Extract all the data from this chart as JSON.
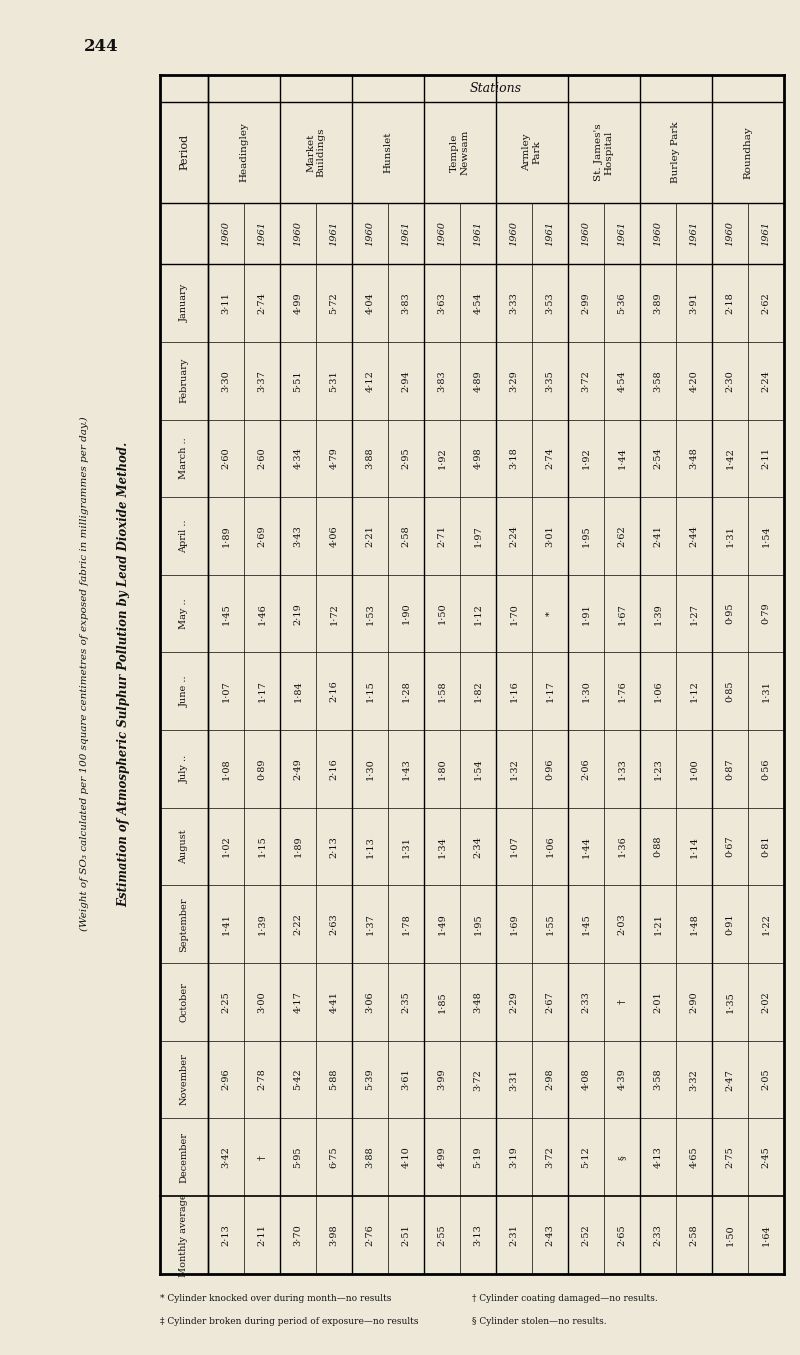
{
  "title_line1": "Estimation of Atmospheric Sulphur Pollution by Lead Dioxide Method.",
  "title_line2": "(Weight of SO₃ calculated per 100 square centimetres of exposed fabric in milligrammes per day.)",
  "page_number": "244",
  "stations_label": "Stations",
  "periods": [
    "January",
    "February",
    "March ..",
    "April ..",
    "May ..",
    "June ..",
    "July ..",
    "August",
    "September",
    "October",
    "November",
    "December",
    "Monthly average"
  ],
  "period_display": [
    "January",
    "February",
    "March\n..",
    "April\n..",
    "May\n..",
    "June\n..",
    "July\n..",
    "August",
    "September",
    "October",
    "November",
    "December",
    "Monthly\naverage"
  ],
  "column_names": [
    "Headingley",
    "Market\nBuildings",
    "Hunslet",
    "Temple\nNewsam",
    "Armley\nPark",
    "St. James's\nHospital",
    "Burley Park",
    "Roundhay"
  ],
  "data_1960": [
    [
      "3·11",
      "3·30",
      "2·60",
      "1·89",
      "1·45",
      "1·07",
      "1·08",
      "1·02",
      "1·41",
      "2·25",
      "2·96",
      "3·42",
      "2·13"
    ],
    [
      "4·99",
      "5·51",
      "4·34",
      "3·43",
      "2·19",
      "1·84",
      "2·49",
      "1·89",
      "2·22",
      "4·17",
      "5·42",
      "5·95",
      "3·70"
    ],
    [
      "4·04",
      "4·12",
      "3·88",
      "2·21",
      "1·53",
      "1·15",
      "1·30",
      "1·13",
      "1·37",
      "3·06",
      "5·39",
      "3·88",
      "2·76"
    ],
    [
      "3·63",
      "3·83",
      "1·92",
      "2·71",
      "1·50",
      "1·58",
      "1·80",
      "1·34",
      "1·49",
      "1·85",
      "3·99",
      "4·99",
      "2·55"
    ],
    [
      "3·33",
      "3·29",
      "3·18",
      "2·24",
      "1·70",
      "1·16",
      "1·32",
      "1·07",
      "1·69",
      "2·29",
      "3·31",
      "3·19",
      "2·31"
    ],
    [
      "2·99",
      "3·72",
      "1·92",
      "1·95",
      "1·91",
      "1·30",
      "2·06",
      "1·44",
      "1·45",
      "2·33",
      "4·08",
      "5·12",
      "2·52"
    ],
    [
      "3·89",
      "3·58",
      "2·54",
      "2·41",
      "1·39",
      "1·06",
      "1·23",
      "0·88",
      "1·21",
      "2·01",
      "3·58",
      "4·13",
      "2·33"
    ],
    [
      "2·18",
      "2·30",
      "1·42",
      "1·31",
      "0·95",
      "0·85",
      "0·87",
      "0·67",
      "0·91",
      "1·35",
      "2·47",
      "2·75",
      "1·50"
    ]
  ],
  "data_1961": [
    [
      "2·74",
      "3·37",
      "2·60",
      "2·69",
      "1·46",
      "1·17",
      "0·89",
      "1·15",
      "1·39",
      "3·00",
      "2·78",
      "†",
      "2·11"
    ],
    [
      "5·72",
      "5·31",
      "4·79",
      "4·06",
      "1·72",
      "2·16",
      "2·16",
      "2·13",
      "2·63",
      "4·41",
      "5·88",
      "6·75",
      "3·98"
    ],
    [
      "3·83",
      "2·94",
      "2·95",
      "2·58",
      "1·90",
      "1·28",
      "1·43",
      "1·31",
      "1·78",
      "2·35",
      "3·61",
      "4·10",
      "2·51"
    ],
    [
      "4·54",
      "4·89",
      "4·98",
      "1·97",
      "1·12",
      "1·82",
      "1·54",
      "2·34",
      "1·95",
      "3·48",
      "3·72",
      "5·19",
      "3·13"
    ],
    [
      "3·53",
      "3·35",
      "2·74",
      "3·01",
      "*",
      "1·17",
      "0·96",
      "1·06",
      "1·55",
      "2·67",
      "2·98",
      "3·72",
      "2·43"
    ],
    [
      "5·36",
      "4·54",
      "1·44",
      "2·62",
      "1·67",
      "1·76",
      "1·33",
      "1·36",
      "2·03",
      "†",
      "4·39",
      "§",
      "2·65"
    ],
    [
      "3·91",
      "4·20",
      "3·48",
      "2·44",
      "1·27",
      "1·12",
      "1·00",
      "1·14",
      "1·48",
      "2·90",
      "3·32",
      "4·65",
      "2·58"
    ],
    [
      "2·62",
      "2·24",
      "2·11",
      "1·54",
      "0·79",
      "1·31",
      "0·56",
      "0·81",
      "1·22",
      "2·02",
      "2·05",
      "2·45",
      "1·64"
    ]
  ],
  "footnotes": [
    [
      "* Cylinder knocked over during month—no results",
      "† Cylinder coating damaged—no results."
    ],
    [
      "‡ Cylinder broken during period of exposure—no results",
      "§ Cylinder stolen—no results."
    ]
  ],
  "bg_color": "#ede8d8",
  "text_color": "#111111"
}
